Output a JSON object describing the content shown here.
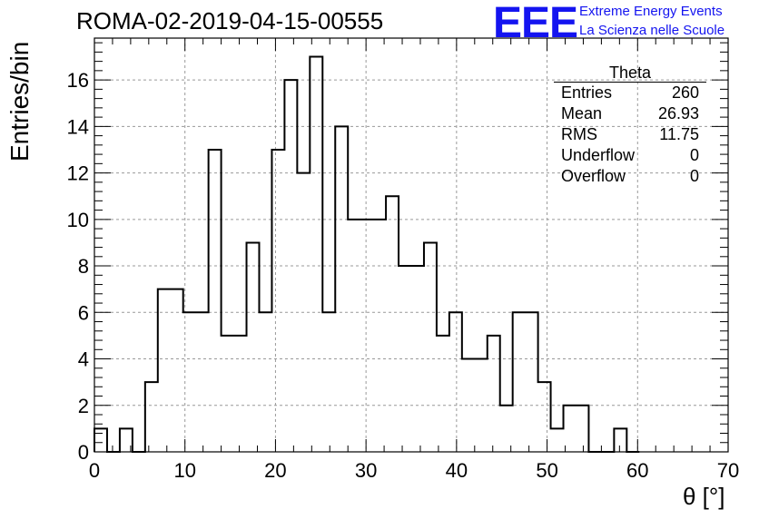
{
  "title": "ROMA-02-2019-04-15-00555",
  "logo": {
    "mark": "EEE",
    "line1": "Extreme Energy Events",
    "line2": "La Scienza nelle Scuole",
    "color": "#1414f0"
  },
  "stats": {
    "name": "Theta",
    "rows": [
      {
        "label": "Entries",
        "value": "260"
      },
      {
        "label": "Mean",
        "value": "26.93"
      },
      {
        "label": "RMS",
        "value": "11.75"
      },
      {
        "label": "Underflow",
        "value": "0"
      },
      {
        "label": "Overflow",
        "value": "0"
      }
    ]
  },
  "chart_data": {
    "type": "bar",
    "style": "step histogram",
    "xlabel": "θ [°]",
    "ylabel": "Entries/bin",
    "xlim": [
      0,
      70
    ],
    "ylim": [
      0,
      17.8
    ],
    "bin_width": 1.4,
    "bin_low_edges": [
      0,
      1.4,
      2.8,
      4.2,
      5.6,
      7,
      8.4,
      9.8,
      11.2,
      12.6,
      14,
      15.4,
      16.8,
      18.2,
      19.6,
      21,
      22.4,
      23.8,
      25.2,
      26.6,
      28,
      29.4,
      30.8,
      32.2,
      33.6,
      35,
      36.4,
      37.8,
      39.2,
      40.6,
      42,
      43.4,
      44.8,
      46.2,
      47.6,
      49,
      50.4,
      51.8,
      53.2,
      54.6,
      56,
      57.4,
      58.8
    ],
    "values": [
      1,
      0,
      1,
      0,
      3,
      7,
      7,
      6,
      6,
      13,
      5,
      5,
      9,
      6,
      13,
      16,
      12,
      17,
      6,
      14,
      10,
      10,
      10,
      11,
      8,
      8,
      9,
      5,
      6,
      4,
      4,
      5,
      2,
      6,
      6,
      3,
      1,
      2,
      2,
      0,
      0,
      1,
      0
    ],
    "x_ticks": [
      0,
      10,
      20,
      30,
      40,
      50,
      60,
      70
    ],
    "y_ticks": [
      0,
      2,
      4,
      6,
      8,
      10,
      12,
      14,
      16
    ],
    "grid": true,
    "line_color": "#000000"
  }
}
